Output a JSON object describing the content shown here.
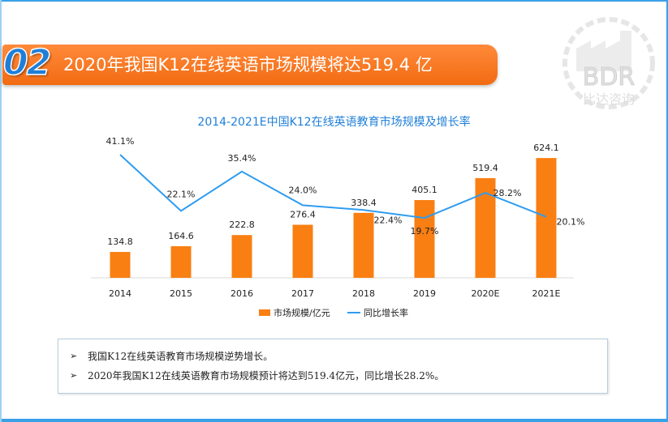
{
  "header": {
    "section_number": "02",
    "title": "2020年我国K12在线英语市场规模将达519.4 亿"
  },
  "logo": {
    "text": "BDR",
    "subtext": "比达咨询"
  },
  "chart_data": {
    "type": "bar",
    "title": "2014-2021E中国K12在线英语教育市场规模及增长率",
    "categories": [
      "2014",
      "2015",
      "2016",
      "2017",
      "2018",
      "2019",
      "2020E",
      "2021E"
    ],
    "series": [
      {
        "name": "市场规模/亿元",
        "type": "bar",
        "color": "#f97f13",
        "values": [
          134.8,
          164.6,
          222.8,
          276.4,
          338.4,
          405.1,
          519.4,
          624.1
        ]
      },
      {
        "name": "同比增长率",
        "type": "line",
        "color": "#2e9cf0",
        "values": [
          41.1,
          22.1,
          35.4,
          24.0,
          22.4,
          19.7,
          28.2,
          20.1
        ]
      }
    ],
    "bar_labels": [
      "134.8",
      "164.6",
      "222.8",
      "276.4",
      "338.4",
      "405.1",
      "519.4",
      "624.1"
    ],
    "line_labels": [
      "41.1%",
      "22.1%",
      "35.4%",
      "24.0%",
      "22.4%",
      "19.7%",
      "28.2%",
      "20.1%"
    ],
    "legend_position": "bottom",
    "grid": false
  },
  "notes": [
    "我国K12在线英语教育市场规模逆势增长。",
    "2020年我国K12在线英语教育市场规模预计将达到519.4亿元，同比增长28.2%。"
  ],
  "bullet_symbol": "➢"
}
